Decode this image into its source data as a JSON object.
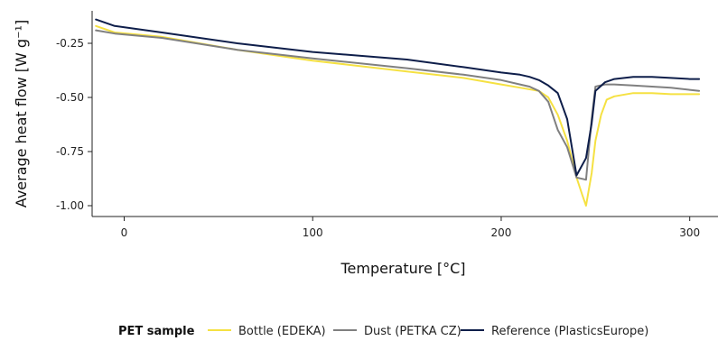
{
  "chart_data": {
    "type": "line",
    "title": "",
    "xlabel": "Temperature [°C]",
    "ylabel": "Average heat flow [W g⁻¹]",
    "xlim": [
      -17,
      315
    ],
    "ylim": [
      -1.05,
      -0.1
    ],
    "x_ticks": [
      0,
      100,
      200,
      300
    ],
    "x_tick_labels": [
      "0",
      "100",
      "200",
      "300"
    ],
    "y_ticks": [
      -0.25,
      -0.5,
      -0.75,
      -1.0
    ],
    "y_tick_labels": [
      "-0.25",
      "-0.50",
      "-0.75",
      "-1.00"
    ],
    "grid": false,
    "legend_position": "bottom",
    "legend_title": "PET sample",
    "series": [
      {
        "name": "Bottle (EDEKA)",
        "color": "#f5e142",
        "x": [
          -15,
          -5,
          20,
          60,
          100,
          150,
          180,
          200,
          210,
          220,
          225,
          230,
          235,
          240,
          243,
          245,
          248,
          250,
          253,
          256,
          260,
          270,
          280,
          290,
          300,
          305
        ],
        "y": [
          -0.17,
          -0.2,
          -0.22,
          -0.28,
          -0.33,
          -0.38,
          -0.41,
          -0.44,
          -0.455,
          -0.47,
          -0.5,
          -0.58,
          -0.7,
          -0.87,
          -0.95,
          -1.0,
          -0.85,
          -0.7,
          -0.58,
          -0.51,
          -0.495,
          -0.48,
          -0.48,
          -0.485,
          -0.485,
          -0.485
        ]
      },
      {
        "name": "Dust (PETKA CZ)",
        "color": "#808080",
        "x": [
          -15,
          -5,
          20,
          60,
          100,
          150,
          180,
          200,
          210,
          215,
          220,
          225,
          230,
          235,
          240,
          245,
          248,
          250,
          255,
          260,
          270,
          280,
          290,
          300,
          305
        ],
        "y": [
          -0.19,
          -0.205,
          -0.225,
          -0.28,
          -0.32,
          -0.365,
          -0.395,
          -0.42,
          -0.44,
          -0.45,
          -0.47,
          -0.52,
          -0.65,
          -0.73,
          -0.87,
          -0.88,
          -0.6,
          -0.45,
          -0.44,
          -0.44,
          -0.445,
          -0.45,
          -0.455,
          -0.465,
          -0.47
        ]
      },
      {
        "name": "Reference (PlasticsEurope)",
        "color": "#0e1e4a",
        "x": [
          -15,
          -5,
          20,
          60,
          100,
          150,
          180,
          200,
          210,
          215,
          220,
          225,
          230,
          235,
          240,
          245,
          248,
          250,
          255,
          260,
          270,
          280,
          290,
          300,
          305
        ],
        "y": [
          -0.14,
          -0.17,
          -0.2,
          -0.25,
          -0.29,
          -0.325,
          -0.36,
          -0.385,
          -0.395,
          -0.405,
          -0.42,
          -0.445,
          -0.48,
          -0.6,
          -0.86,
          -0.78,
          -0.62,
          -0.47,
          -0.43,
          -0.415,
          -0.405,
          -0.405,
          -0.41,
          -0.415,
          -0.415
        ]
      }
    ]
  }
}
